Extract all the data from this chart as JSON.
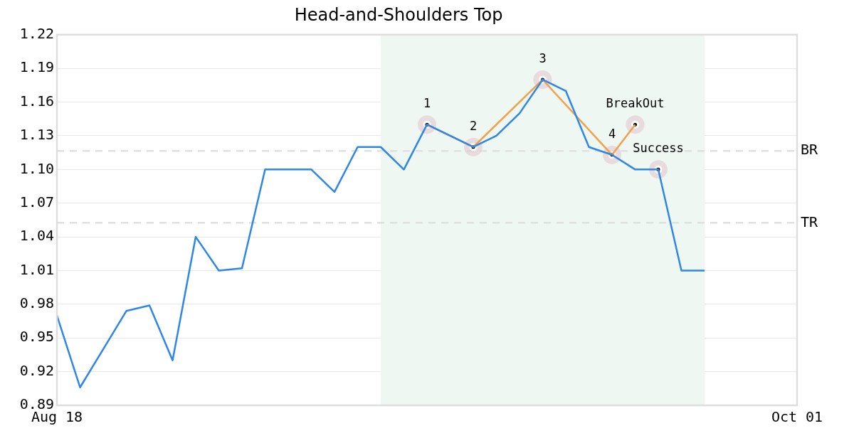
{
  "chart_data": {
    "type": "line",
    "title": "Head-and-Shoulders Top",
    "categories": [
      "Aug 18",
      null,
      null,
      null,
      null,
      null,
      null,
      null,
      null,
      null,
      null,
      null,
      null,
      null,
      null,
      null,
      null,
      null,
      null,
      null,
      null,
      null,
      null,
      null,
      null,
      null,
      null,
      null,
      null,
      null,
      null,
      null,
      "Oct 01"
    ],
    "series": [
      {
        "type": "line",
        "color": "#2e86e8",
        "marker": "none",
        "values": [
          0.97,
          0.906,
          0.94,
          0.974,
          0.979,
          0.93,
          1.04,
          1.01,
          1.012,
          1.1,
          1.1,
          1.1,
          1.08,
          1.12,
          1.12,
          1.1,
          1.14,
          1.13,
          1.12,
          1.13,
          1.15,
          1.18,
          1.17,
          1.12,
          1.113,
          1.1,
          1.1,
          1.01,
          1.01,
          null,
          null,
          null,
          null
        ]
      },
      {
        "type": "line",
        "color": "#f4a04a",
        "marker": "none",
        "values": [
          null,
          null,
          null,
          null,
          null,
          null,
          null,
          null,
          null,
          null,
          null,
          null,
          null,
          null,
          null,
          null,
          1.14,
          null,
          1.12,
          null,
          null,
          1.18,
          null,
          null,
          1.113,
          1.14,
          null,
          null,
          null,
          null,
          null,
          null,
          null
        ]
      },
      {
        "type": "scatter",
        "name": "1",
        "color": "#000000",
        "marker": "circle",
        "values": [
          null,
          null,
          null,
          null,
          null,
          null,
          null,
          null,
          null,
          null,
          null,
          null,
          null,
          null,
          null,
          null,
          1.14,
          null,
          null,
          null,
          null,
          null,
          null,
          null,
          null,
          null,
          null,
          null,
          null,
          null,
          null,
          null,
          null
        ]
      },
      {
        "type": "scatter",
        "name": "2",
        "color": "#000000",
        "marker": "circle",
        "values": [
          null,
          null,
          null,
          null,
          null,
          null,
          null,
          null,
          null,
          null,
          null,
          null,
          null,
          null,
          null,
          null,
          null,
          null,
          1.12,
          null,
          null,
          null,
          null,
          null,
          null,
          null,
          null,
          null,
          null,
          null,
          null,
          null,
          null
        ]
      },
      {
        "type": "scatter",
        "name": "3",
        "color": "#000000",
        "marker": "circle",
        "values": [
          null,
          null,
          null,
          null,
          null,
          null,
          null,
          null,
          null,
          null,
          null,
          null,
          null,
          null,
          null,
          null,
          null,
          null,
          null,
          null,
          null,
          1.18,
          null,
          null,
          null,
          null,
          null,
          null,
          null,
          null,
          null,
          null,
          null
        ]
      },
      {
        "type": "scatter",
        "name": "4",
        "color": "#000000",
        "marker": "circle",
        "values": [
          null,
          null,
          null,
          null,
          null,
          null,
          null,
          null,
          null,
          null,
          null,
          null,
          null,
          null,
          null,
          null,
          null,
          null,
          null,
          null,
          null,
          null,
          null,
          null,
          1.113,
          null,
          null,
          null,
          null,
          null,
          null,
          null,
          null
        ]
      },
      {
        "type": "scatter",
        "name": "BreakOut",
        "color": "#000000",
        "marker": "circle",
        "values": [
          null,
          null,
          null,
          null,
          null,
          null,
          null,
          null,
          null,
          null,
          null,
          null,
          null,
          null,
          null,
          null,
          null,
          null,
          null,
          null,
          null,
          null,
          null,
          null,
          null,
          1.14,
          null,
          null,
          null,
          null,
          null,
          null,
          null
        ]
      },
      {
        "type": "scatter",
        "name": "Success",
        "color": "#000000",
        "marker": "circle",
        "values": [
          null,
          null,
          null,
          null,
          null,
          null,
          null,
          null,
          null,
          null,
          null,
          null,
          null,
          null,
          null,
          null,
          null,
          null,
          null,
          null,
          null,
          null,
          null,
          null,
          null,
          null,
          1.1,
          null,
          null,
          null,
          null,
          null,
          null
        ]
      }
    ],
    "ylim": [
      0.89,
      1.22
    ],
    "yticks": [
      0.89,
      0.92,
      0.95,
      0.98,
      1.01,
      1.04,
      1.07,
      {
        "value": 1.1,
        "label": "1.10"
      },
      1.13,
      1.16,
      1.19,
      1.22
    ],
    "ref_lines": [
      {
        "axis": "y",
        "value": 1.1165,
        "label": "BR",
        "color": "#e0e0e0",
        "line_style": "dashed"
      },
      {
        "axis": "y",
        "value": 1.0525,
        "label": "TR",
        "color": "#e0e0e0",
        "line_style": "dashed"
      }
    ],
    "grid": "y",
    "legend": false
  }
}
